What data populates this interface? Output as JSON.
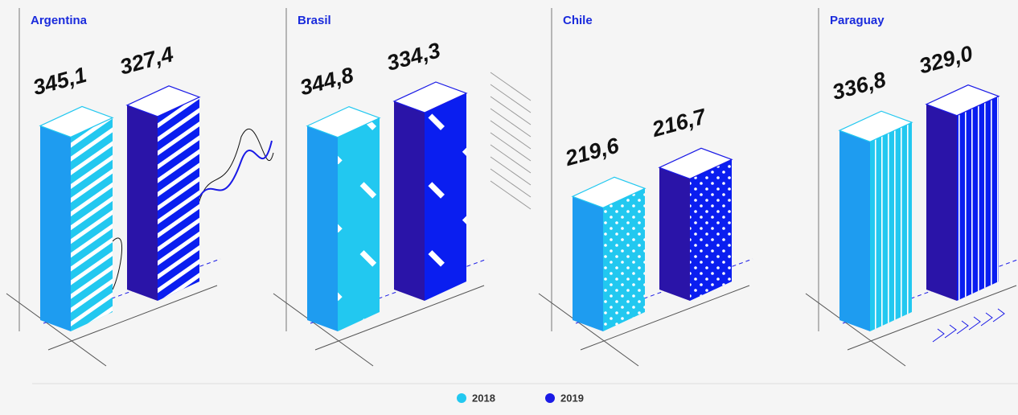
{
  "chart_data": {
    "type": "bar",
    "categories": [
      "Argentina",
      "Brasil",
      "Chile",
      "Paraguay"
    ],
    "series": [
      {
        "name": "2018",
        "color": "#22c8f0",
        "values": [
          345.1,
          344.8,
          219.6,
          336.8
        ],
        "value_labels": [
          "345,1",
          "344,8",
          "219,6",
          "336,8"
        ]
      },
      {
        "name": "2019",
        "color": "#1a1ae6",
        "values": [
          327.4,
          334.3,
          216.7,
          329.0
        ],
        "value_labels": [
          "327,4",
          "334,3",
          "216,7",
          "329,0"
        ]
      }
    ]
  }
}
